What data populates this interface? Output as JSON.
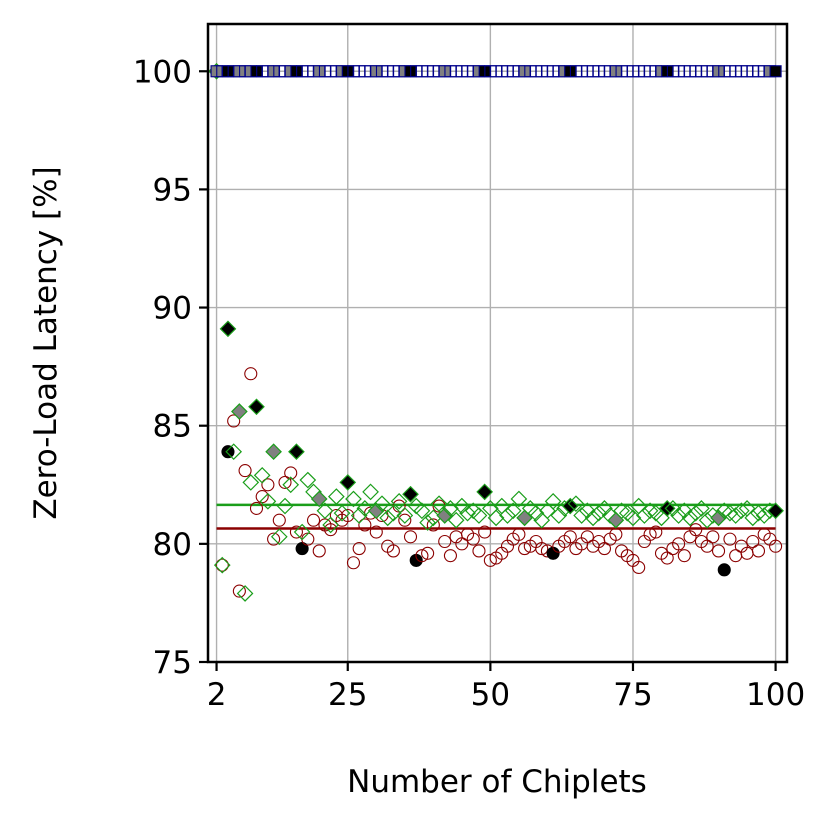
{
  "chart_data": {
    "type": "scatter",
    "title": "",
    "xlabel": "Number of Chiplets",
    "ylabel": "Zero-Load Latency [%]",
    "xlim": [
      0.5,
      102
    ],
    "ylim": [
      75,
      102
    ],
    "xticks": [
      2,
      25,
      50,
      75,
      100
    ],
    "xtick_labels": [
      "2",
      "25",
      "50",
      "75",
      "100"
    ],
    "yticks": [
      75,
      80,
      85,
      90,
      95,
      100
    ],
    "ytick_labels": [
      "75",
      "80",
      "85",
      "90",
      "95",
      "100"
    ],
    "grid": true,
    "legend": "none",
    "colors": {
      "blue": "#00008b",
      "green": "#1a9e1a",
      "red": "#8b0000",
      "highlight_black": "#000000",
      "highlight_gray": "#808080"
    },
    "series": [
      {
        "marker": "square",
        "color": "#00008b",
        "x": [
          2,
          3,
          4,
          5,
          6,
          7,
          8,
          9,
          10,
          11,
          12,
          13,
          14,
          15,
          16,
          17,
          18,
          19,
          20,
          21,
          22,
          23,
          24,
          25,
          26,
          27,
          28,
          29,
          30,
          31,
          32,
          33,
          34,
          35,
          36,
          37,
          38,
          39,
          40,
          41,
          42,
          43,
          44,
          45,
          46,
          47,
          48,
          49,
          50,
          51,
          52,
          53,
          54,
          55,
          56,
          57,
          58,
          59,
          60,
          61,
          62,
          63,
          64,
          65,
          66,
          67,
          68,
          69,
          70,
          71,
          72,
          73,
          74,
          75,
          76,
          77,
          78,
          79,
          80,
          81,
          82,
          83,
          84,
          85,
          86,
          87,
          88,
          89,
          90,
          91,
          92,
          93,
          94,
          95,
          96,
          97,
          98,
          99,
          100
        ],
        "y": [
          100,
          100,
          100,
          100,
          100,
          100,
          100,
          100,
          100,
          100,
          100,
          100,
          100,
          100,
          100,
          100,
          100,
          100,
          100,
          100,
          100,
          100,
          100,
          100,
          100,
          100,
          100,
          100,
          100,
          100,
          100,
          100,
          100,
          100,
          100,
          100,
          100,
          100,
          100,
          100,
          100,
          100,
          100,
          100,
          100,
          100,
          100,
          100,
          100,
          100,
          100,
          100,
          100,
          100,
          100,
          100,
          100,
          100,
          100,
          100,
          100,
          100,
          100,
          100,
          100,
          100,
          100,
          100,
          100,
          100,
          100,
          100,
          100,
          100,
          100,
          100,
          100,
          100,
          100,
          100,
          100,
          100,
          100,
          100,
          100,
          100,
          100,
          100,
          100,
          100,
          100,
          100,
          100,
          100,
          100,
          100,
          100,
          100,
          100
        ],
        "highlight_black_x": [
          4,
          9,
          16,
          25,
          36,
          49,
          64,
          81,
          100
        ],
        "highlight_gray_x": [
          2,
          6,
          8,
          12,
          15,
          20,
          24,
          30,
          35,
          42,
          48,
          56,
          63,
          72,
          80,
          90,
          99
        ]
      },
      {
        "marker": "diamond",
        "color": "#1a9e1a",
        "x": [
          2,
          3,
          4,
          5,
          6,
          7,
          8,
          9,
          10,
          11,
          12,
          13,
          14,
          15,
          16,
          17,
          18,
          19,
          20,
          21,
          22,
          23,
          24,
          25,
          26,
          27,
          28,
          29,
          30,
          31,
          32,
          33,
          34,
          35,
          36,
          37,
          38,
          39,
          40,
          41,
          42,
          43,
          44,
          45,
          46,
          47,
          48,
          49,
          50,
          51,
          52,
          53,
          54,
          55,
          56,
          57,
          58,
          59,
          60,
          61,
          62,
          63,
          64,
          65,
          66,
          67,
          68,
          69,
          70,
          71,
          72,
          73,
          74,
          75,
          76,
          77,
          78,
          79,
          80,
          81,
          82,
          83,
          84,
          85,
          86,
          87,
          88,
          89,
          90,
          91,
          92,
          93,
          94,
          95,
          96,
          97,
          98,
          99,
          100
        ],
        "y": [
          100,
          79.1,
          89.1,
          83.9,
          85.6,
          77.9,
          82.6,
          85.8,
          82.9,
          81.8,
          83.9,
          80.3,
          81.6,
          82.5,
          83.9,
          80.5,
          82.7,
          82.2,
          81.9,
          81.4,
          80.8,
          82.0,
          81.3,
          82.6,
          81.9,
          81.2,
          81.5,
          82.2,
          81.4,
          81.7,
          81.1,
          81.3,
          81.8,
          81.2,
          82.1,
          81.6,
          81.4,
          80.9,
          81.1,
          81.7,
          81.2,
          81.5,
          81.0,
          81.6,
          81.3,
          81.4,
          81.2,
          82.2,
          81.5,
          81.1,
          81.6,
          81.2,
          81.4,
          81.9,
          81.1,
          81.5,
          81.3,
          81.0,
          81.4,
          81.8,
          81.2,
          81.5,
          81.6,
          81.7,
          81.2,
          81.4,
          81.1,
          81.3,
          81.5,
          81.2,
          81.0,
          81.4,
          81.3,
          81.1,
          81.6,
          81.2,
          81.4,
          81.3,
          81.1,
          81.5,
          81.5,
          81.2,
          81.4,
          81.1,
          81.3,
          81.5,
          81.0,
          81.2,
          81.1,
          81.4,
          81.3,
          81.2,
          81.4,
          81.5,
          81.1,
          81.3,
          81.2,
          81.4,
          81.4
        ],
        "mean": 81.65,
        "highlight_black_x": [
          4,
          9,
          16,
          25,
          36,
          49,
          64,
          81,
          100
        ],
        "highlight_gray_x": [
          6,
          12,
          20,
          30,
          42,
          56,
          72,
          90
        ]
      },
      {
        "marker": "circle",
        "color": "#8b0000",
        "x": [
          2,
          3,
          4,
          5,
          6,
          7,
          8,
          9,
          10,
          11,
          12,
          13,
          14,
          15,
          16,
          17,
          18,
          19,
          20,
          21,
          22,
          23,
          24,
          25,
          26,
          27,
          28,
          29,
          30,
          31,
          32,
          33,
          34,
          35,
          36,
          37,
          38,
          39,
          40,
          41,
          42,
          43,
          44,
          45,
          46,
          47,
          48,
          49,
          50,
          51,
          52,
          53,
          54,
          55,
          56,
          57,
          58,
          59,
          60,
          61,
          62,
          63,
          64,
          65,
          66,
          67,
          68,
          69,
          70,
          71,
          72,
          73,
          74,
          75,
          76,
          77,
          78,
          79,
          80,
          81,
          82,
          83,
          84,
          85,
          86,
          87,
          88,
          89,
          90,
          91,
          92,
          93,
          94,
          95,
          96,
          97,
          98,
          99,
          100
        ],
        "y": [
          100,
          79.1,
          83.9,
          85.2,
          78.0,
          83.1,
          87.2,
          81.5,
          82.0,
          82.5,
          80.2,
          81.0,
          82.6,
          83.0,
          80.5,
          79.8,
          80.2,
          81.0,
          79.7,
          80.8,
          80.6,
          81.2,
          81.0,
          81.2,
          79.2,
          79.8,
          80.8,
          81.3,
          80.5,
          81.2,
          79.9,
          79.7,
          81.6,
          81.0,
          80.3,
          79.3,
          79.5,
          79.6,
          80.8,
          81.6,
          80.1,
          79.5,
          80.3,
          80.0,
          80.4,
          80.2,
          79.7,
          80.5,
          79.3,
          79.4,
          79.6,
          79.9,
          80.2,
          80.4,
          79.8,
          79.9,
          80.1,
          79.8,
          79.7,
          79.6,
          79.9,
          80.1,
          80.3,
          79.8,
          80.0,
          80.3,
          79.9,
          80.1,
          79.8,
          80.2,
          80.4,
          79.7,
          79.5,
          79.3,
          79.0,
          80.1,
          80.4,
          80.5,
          79.6,
          79.4,
          79.8,
          80.0,
          79.5,
          80.3,
          80.6,
          80.1,
          79.9,
          80.3,
          79.7,
          78.9,
          80.2,
          79.5,
          79.9,
          79.6,
          80.1,
          79.7,
          80.4,
          80.2,
          79.9
        ],
        "mean": 80.65,
        "highlight_black_x": [
          4,
          17,
          37,
          61,
          91
        ]
      }
    ]
  }
}
